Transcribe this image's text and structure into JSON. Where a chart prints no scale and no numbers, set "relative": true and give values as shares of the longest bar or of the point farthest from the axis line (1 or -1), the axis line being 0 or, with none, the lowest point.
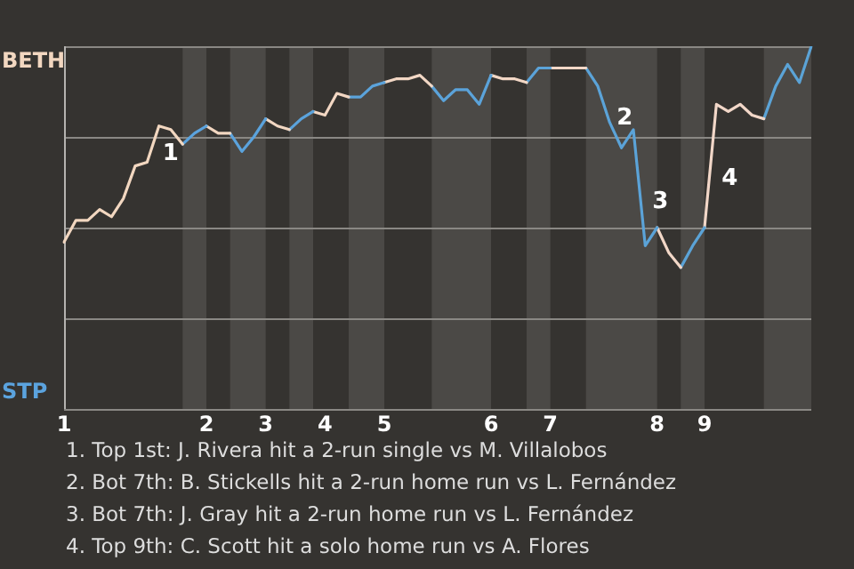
{
  "chart_data": {
    "type": "line",
    "relative": true,
    "grid": "y",
    "legend": false,
    "marker": "none",
    "line_style": "solid",
    "categories": [
      "1",
      null,
      null,
      null,
      null,
      null,
      null,
      null,
      null,
      null,
      null,
      null,
      "2",
      null,
      null,
      null,
      null,
      "3",
      null,
      null,
      null,
      null,
      "4",
      null,
      null,
      null,
      null,
      "5",
      null,
      null,
      null,
      null,
      null,
      null,
      null,
      null,
      "6",
      null,
      null,
      null,
      null,
      "7",
      null,
      null,
      null,
      null,
      null,
      null,
      null,
      null,
      "8",
      null,
      null,
      null,
      "9",
      null,
      null,
      null,
      null,
      null,
      null,
      null,
      null,
      null
    ],
    "series": [
      {
        "color": "#f2d7c0",
        "values": [
          0.46,
          0.52,
          0.52,
          0.55,
          0.53,
          0.58,
          0.67,
          0.68,
          0.78,
          0.77,
          0.73,
          null,
          null,
          null,
          null,
          null,
          null,
          null,
          null,
          null,
          null,
          null,
          null,
          null,
          null,
          null,
          null,
          null,
          null,
          null,
          null,
          null,
          null,
          null,
          null,
          null,
          null,
          null,
          null,
          null,
          null,
          null,
          null,
          null,
          null,
          null,
          null,
          null,
          null,
          null,
          null,
          null,
          null,
          null,
          null,
          null,
          null,
          null,
          null,
          null,
          null,
          null,
          null,
          null
        ]
      },
      {
        "color": "#5ba3de",
        "values": [
          null,
          null,
          null,
          null,
          null,
          null,
          null,
          null,
          null,
          null,
          0.73,
          0.76,
          0.78,
          null,
          null,
          null,
          null,
          null,
          null,
          null,
          null,
          null,
          null,
          null,
          null,
          null,
          null,
          null,
          null,
          null,
          null,
          null,
          null,
          null,
          null,
          null,
          null,
          null,
          null,
          null,
          null,
          null,
          null,
          null,
          null,
          null,
          null,
          null,
          null,
          null,
          null,
          null,
          null,
          null,
          null,
          null,
          null,
          null,
          null,
          null,
          null,
          null,
          null,
          null
        ]
      },
      {
        "color": "#f2d7c1",
        "values": [
          null,
          null,
          null,
          null,
          null,
          null,
          null,
          null,
          null,
          null,
          null,
          null,
          0.78,
          0.76,
          0.76,
          null,
          null,
          null,
          null,
          null,
          null,
          null,
          null,
          null,
          null,
          null,
          null,
          null,
          null,
          null,
          null,
          null,
          null,
          null,
          null,
          null,
          null,
          null,
          null,
          null,
          null,
          null,
          null,
          null,
          null,
          null,
          null,
          null,
          null,
          null,
          null,
          null,
          null,
          null,
          null,
          null,
          null,
          null,
          null,
          null,
          null,
          null,
          null,
          null
        ]
      },
      {
        "color": "#5ba3dd",
        "values": [
          null,
          null,
          null,
          null,
          null,
          null,
          null,
          null,
          null,
          null,
          null,
          null,
          null,
          null,
          0.76,
          0.71,
          0.75,
          0.8,
          null,
          null,
          null,
          null,
          null,
          null,
          null,
          null,
          null,
          null,
          null,
          null,
          null,
          null,
          null,
          null,
          null,
          null,
          null,
          null,
          null,
          null,
          null,
          null,
          null,
          null,
          null,
          null,
          null,
          null,
          null,
          null,
          null,
          null,
          null,
          null,
          null,
          null,
          null,
          null,
          null,
          null,
          null,
          null,
          null,
          null
        ]
      },
      {
        "color": "#f2d7c2",
        "values": [
          null,
          null,
          null,
          null,
          null,
          null,
          null,
          null,
          null,
          null,
          null,
          null,
          null,
          null,
          null,
          null,
          null,
          0.8,
          0.78,
          0.77,
          null,
          null,
          null,
          null,
          null,
          null,
          null,
          null,
          null,
          null,
          null,
          null,
          null,
          null,
          null,
          null,
          null,
          null,
          null,
          null,
          null,
          null,
          null,
          null,
          null,
          null,
          null,
          null,
          null,
          null,
          null,
          null,
          null,
          null,
          null,
          null,
          null,
          null,
          null,
          null,
          null,
          null,
          null,
          null
        ]
      },
      {
        "color": "#5ba3dc",
        "values": [
          null,
          null,
          null,
          null,
          null,
          null,
          null,
          null,
          null,
          null,
          null,
          null,
          null,
          null,
          null,
          null,
          null,
          null,
          null,
          0.77,
          0.8,
          0.82,
          null,
          null,
          null,
          null,
          null,
          null,
          null,
          null,
          null,
          null,
          null,
          null,
          null,
          null,
          null,
          null,
          null,
          null,
          null,
          null,
          null,
          null,
          null,
          null,
          null,
          null,
          null,
          null,
          null,
          null,
          null,
          null,
          null,
          null,
          null,
          null,
          null,
          null,
          null,
          null,
          null,
          null
        ]
      },
      {
        "color": "#f2d7c3",
        "values": [
          null,
          null,
          null,
          null,
          null,
          null,
          null,
          null,
          null,
          null,
          null,
          null,
          null,
          null,
          null,
          null,
          null,
          null,
          null,
          null,
          null,
          0.82,
          0.81,
          0.87,
          0.86,
          null,
          null,
          null,
          null,
          null,
          null,
          null,
          null,
          null,
          null,
          null,
          null,
          null,
          null,
          null,
          null,
          null,
          null,
          null,
          null,
          null,
          null,
          null,
          null,
          null,
          null,
          null,
          null,
          null,
          null,
          null,
          null,
          null,
          null,
          null,
          null,
          null,
          null,
          null
        ]
      },
      {
        "color": "#5ba3db",
        "values": [
          null,
          null,
          null,
          null,
          null,
          null,
          null,
          null,
          null,
          null,
          null,
          null,
          null,
          null,
          null,
          null,
          null,
          null,
          null,
          null,
          null,
          null,
          null,
          null,
          0.86,
          0.86,
          0.89,
          0.9,
          null,
          null,
          null,
          null,
          null,
          null,
          null,
          null,
          null,
          null,
          null,
          null,
          null,
          null,
          null,
          null,
          null,
          null,
          null,
          null,
          null,
          null,
          null,
          null,
          null,
          null,
          null,
          null,
          null,
          null,
          null,
          null,
          null,
          null,
          null,
          null
        ]
      },
      {
        "color": "#f2d7c4",
        "values": [
          null,
          null,
          null,
          null,
          null,
          null,
          null,
          null,
          null,
          null,
          null,
          null,
          null,
          null,
          null,
          null,
          null,
          null,
          null,
          null,
          null,
          null,
          null,
          null,
          null,
          null,
          null,
          0.9,
          0.91,
          0.91,
          0.92,
          0.89,
          null,
          null,
          null,
          null,
          null,
          null,
          null,
          null,
          null,
          null,
          null,
          null,
          null,
          null,
          null,
          null,
          null,
          null,
          null,
          null,
          null,
          null,
          null,
          null,
          null,
          null,
          null,
          null,
          null,
          null,
          null,
          null
        ]
      },
      {
        "color": "#5ba3da",
        "values": [
          null,
          null,
          null,
          null,
          null,
          null,
          null,
          null,
          null,
          null,
          null,
          null,
          null,
          null,
          null,
          null,
          null,
          null,
          null,
          null,
          null,
          null,
          null,
          null,
          null,
          null,
          null,
          null,
          null,
          null,
          null,
          0.89,
          0.85,
          0.88,
          0.88,
          0.84,
          0.92,
          null,
          null,
          null,
          null,
          null,
          null,
          null,
          null,
          null,
          null,
          null,
          null,
          null,
          null,
          null,
          null,
          null,
          null,
          null,
          null,
          null,
          null,
          null,
          null,
          null,
          null,
          null
        ]
      },
      {
        "color": "#f2d7c5",
        "values": [
          null,
          null,
          null,
          null,
          null,
          null,
          null,
          null,
          null,
          null,
          null,
          null,
          null,
          null,
          null,
          null,
          null,
          null,
          null,
          null,
          null,
          null,
          null,
          null,
          null,
          null,
          null,
          null,
          null,
          null,
          null,
          null,
          null,
          null,
          null,
          null,
          0.92,
          0.91,
          0.91,
          0.9,
          null,
          null,
          null,
          null,
          null,
          null,
          null,
          null,
          null,
          null,
          null,
          null,
          null,
          null,
          null,
          null,
          null,
          null,
          null,
          null,
          null,
          null,
          null,
          null
        ]
      },
      {
        "color": "#5ba3d9",
        "values": [
          null,
          null,
          null,
          null,
          null,
          null,
          null,
          null,
          null,
          null,
          null,
          null,
          null,
          null,
          null,
          null,
          null,
          null,
          null,
          null,
          null,
          null,
          null,
          null,
          null,
          null,
          null,
          null,
          null,
          null,
          null,
          null,
          null,
          null,
          null,
          null,
          null,
          null,
          null,
          0.9,
          0.94,
          0.94,
          null,
          null,
          null,
          null,
          null,
          null,
          null,
          null,
          null,
          null,
          null,
          null,
          null,
          null,
          null,
          null,
          null,
          null,
          null,
          null,
          null,
          null
        ]
      },
      {
        "color": "#f2d7c6",
        "values": [
          null,
          null,
          null,
          null,
          null,
          null,
          null,
          null,
          null,
          null,
          null,
          null,
          null,
          null,
          null,
          null,
          null,
          null,
          null,
          null,
          null,
          null,
          null,
          null,
          null,
          null,
          null,
          null,
          null,
          null,
          null,
          null,
          null,
          null,
          null,
          null,
          null,
          null,
          null,
          null,
          null,
          0.94,
          0.94,
          0.94,
          0.94,
          null,
          null,
          null,
          null,
          null,
          null,
          null,
          null,
          null,
          null,
          null,
          null,
          null,
          null,
          null,
          null,
          null,
          null,
          null
        ]
      },
      {
        "color": "#5ba3d8",
        "values": [
          null,
          null,
          null,
          null,
          null,
          null,
          null,
          null,
          null,
          null,
          null,
          null,
          null,
          null,
          null,
          null,
          null,
          null,
          null,
          null,
          null,
          null,
          null,
          null,
          null,
          null,
          null,
          null,
          null,
          null,
          null,
          null,
          null,
          null,
          null,
          null,
          null,
          null,
          null,
          null,
          null,
          null,
          null,
          null,
          0.94,
          0.89,
          0.79,
          0.72,
          0.77,
          0.45,
          0.5,
          null,
          null,
          null,
          null,
          null,
          null,
          null,
          null,
          null,
          null,
          null,
          null,
          null
        ]
      },
      {
        "color": "#f2d7c7",
        "values": [
          null,
          null,
          null,
          null,
          null,
          null,
          null,
          null,
          null,
          null,
          null,
          null,
          null,
          null,
          null,
          null,
          null,
          null,
          null,
          null,
          null,
          null,
          null,
          null,
          null,
          null,
          null,
          null,
          null,
          null,
          null,
          null,
          null,
          null,
          null,
          null,
          null,
          null,
          null,
          null,
          null,
          null,
          null,
          null,
          null,
          null,
          null,
          null,
          null,
          null,
          0.5,
          0.43,
          0.39,
          null,
          null,
          null,
          null,
          null,
          null,
          null,
          null,
          null,
          null,
          null
        ]
      },
      {
        "color": "#5ba3d7",
        "values": [
          null,
          null,
          null,
          null,
          null,
          null,
          null,
          null,
          null,
          null,
          null,
          null,
          null,
          null,
          null,
          null,
          null,
          null,
          null,
          null,
          null,
          null,
          null,
          null,
          null,
          null,
          null,
          null,
          null,
          null,
          null,
          null,
          null,
          null,
          null,
          null,
          null,
          null,
          null,
          null,
          null,
          null,
          null,
          null,
          null,
          null,
          null,
          null,
          null,
          null,
          null,
          null,
          0.39,
          0.45,
          0.5,
          null,
          null,
          null,
          null,
          null,
          null,
          null,
          null,
          null
        ]
      },
      {
        "color": "#f2d7c8",
        "values": [
          null,
          null,
          null,
          null,
          null,
          null,
          null,
          null,
          null,
          null,
          null,
          null,
          null,
          null,
          null,
          null,
          null,
          null,
          null,
          null,
          null,
          null,
          null,
          null,
          null,
          null,
          null,
          null,
          null,
          null,
          null,
          null,
          null,
          null,
          null,
          null,
          null,
          null,
          null,
          null,
          null,
          null,
          null,
          null,
          null,
          null,
          null,
          null,
          null,
          null,
          null,
          null,
          null,
          null,
          0.5,
          0.84,
          0.82,
          0.84,
          0.81,
          0.8,
          null,
          null,
          null,
          null
        ]
      },
      {
        "color": "#5ba3d6",
        "values": [
          null,
          null,
          null,
          null,
          null,
          null,
          null,
          null,
          null,
          null,
          null,
          null,
          null,
          null,
          null,
          null,
          null,
          null,
          null,
          null,
          null,
          null,
          null,
          null,
          null,
          null,
          null,
          null,
          null,
          null,
          null,
          null,
          null,
          null,
          null,
          null,
          null,
          null,
          null,
          null,
          null,
          null,
          null,
          null,
          null,
          null,
          null,
          null,
          null,
          null,
          null,
          null,
          null,
          null,
          null,
          null,
          null,
          null,
          null,
          0.8,
          0.89,
          0.95,
          0.9,
          1
        ]
      }
    ],
    "annotations": [
      "1",
      "2",
      "3",
      "4",
      "BETH",
      "STP",
      "1. Top 1st: J. Rivera hit a 2-run single vs M. Villalobos",
      "2. Bot 7th: B. Stickells hit a 2-run home run vs L. Fernández",
      "3. Bot 7th: J. Gray hit a 2-run home run vs L. Fernández",
      "4. Top 9th: C. Scott hit a solo home run vs A. Flores"
    ]
  }
}
